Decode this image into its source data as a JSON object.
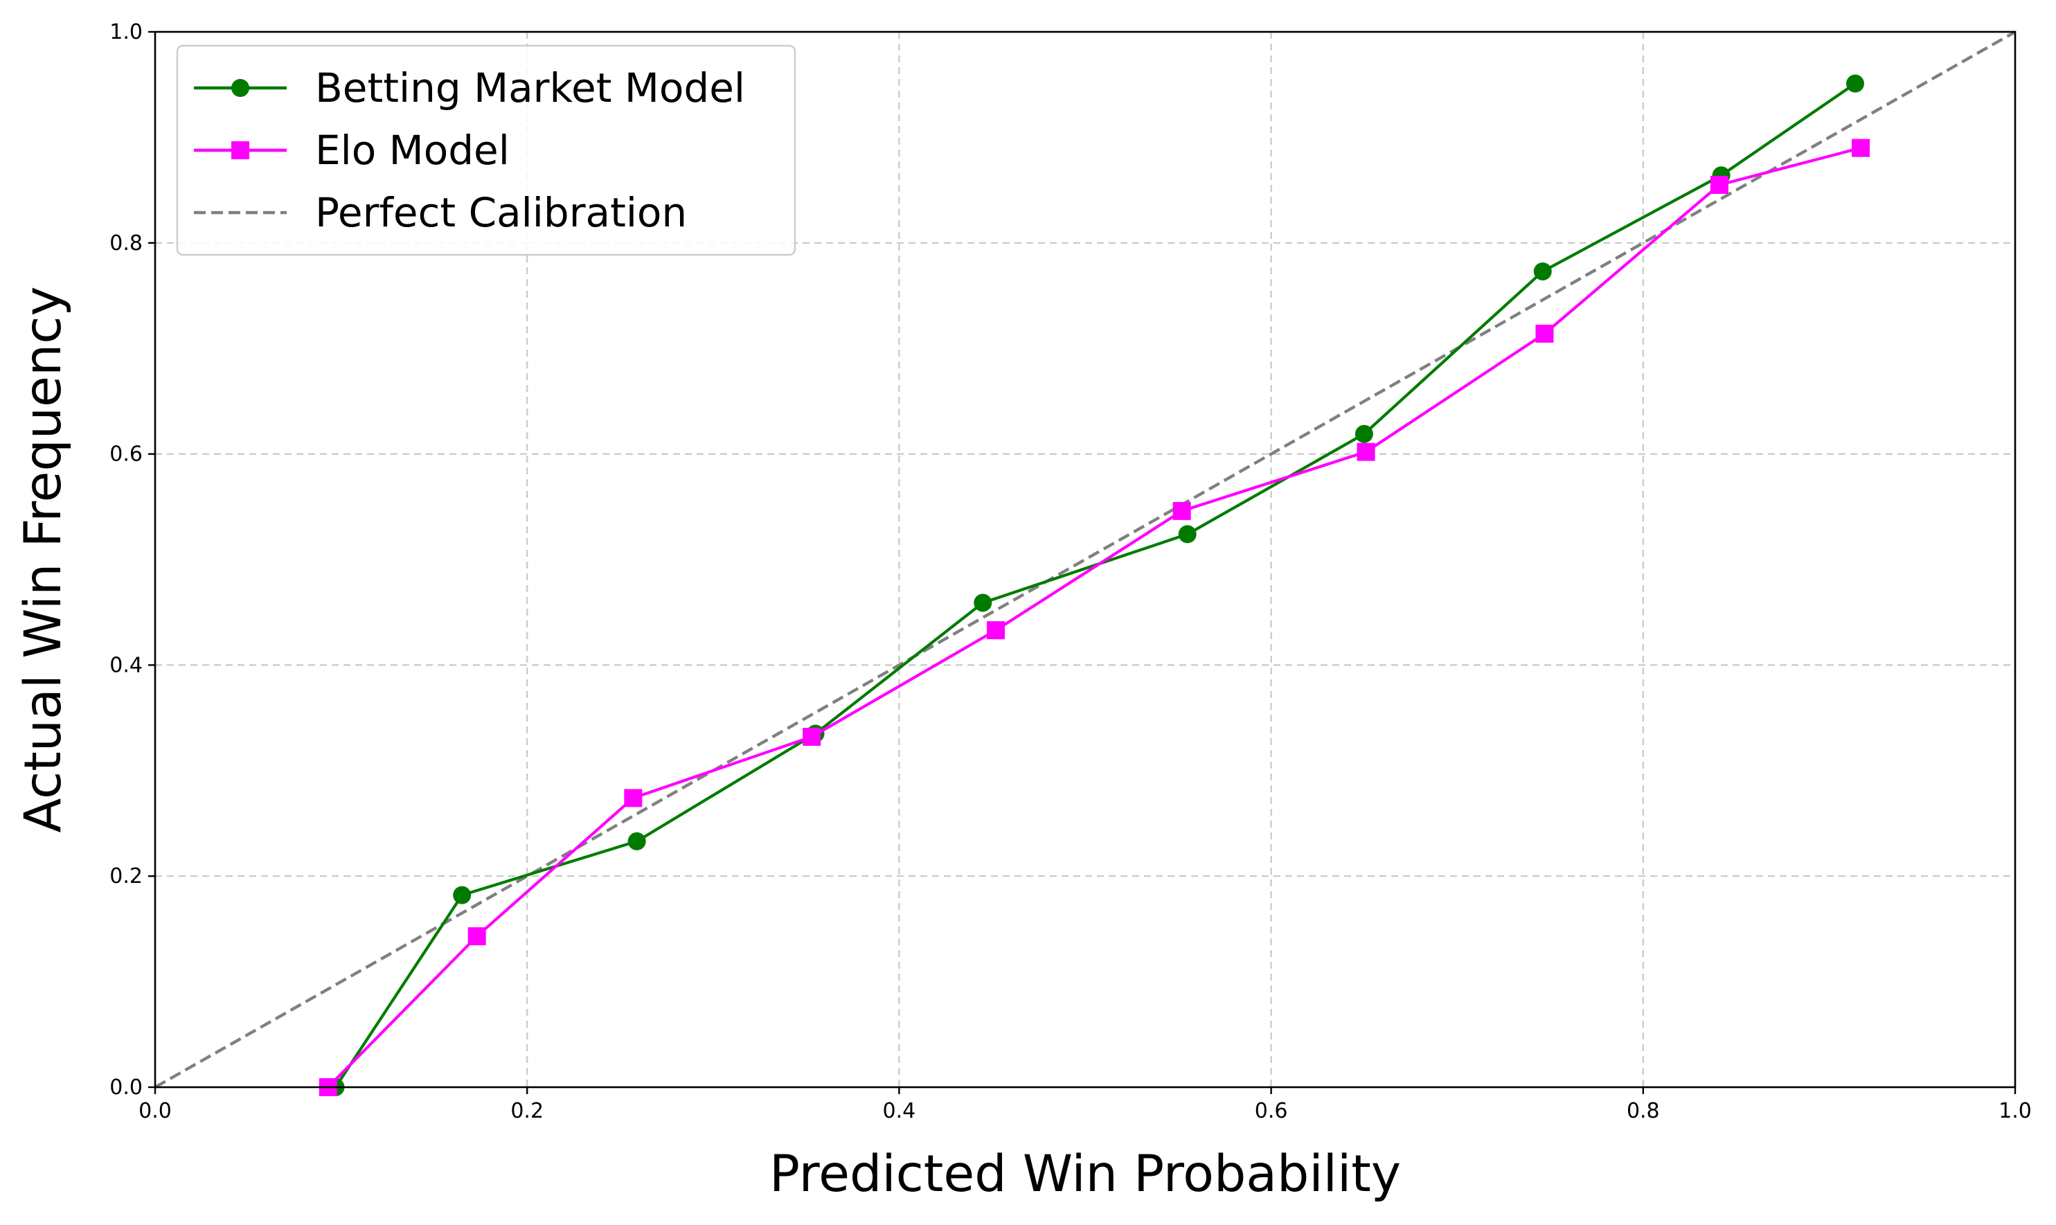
{
  "chart_data": {
    "type": "line",
    "title": "",
    "xlabel": "Predicted Win Probability",
    "ylabel": "Actual Win Frequency",
    "xlim": [
      0.0,
      1.0
    ],
    "ylim": [
      0.0,
      1.0
    ],
    "xticks": [
      "0.0",
      "0.2",
      "0.4",
      "0.6",
      "0.8",
      "1.0"
    ],
    "yticks": [
      "0.0",
      "0.2",
      "0.4",
      "0.6",
      "0.8",
      "1.0"
    ],
    "grid": true,
    "legend_position": "upper-left",
    "series": [
      {
        "name": "Betting Market Model",
        "color": "#007b00",
        "marker": "circle",
        "line_style": "solid",
        "points": [
          [
            0.097,
            0.0
          ],
          [
            0.165,
            0.182
          ],
          [
            0.259,
            0.233
          ],
          [
            0.355,
            0.335
          ],
          [
            0.445,
            0.459
          ],
          [
            0.555,
            0.524
          ],
          [
            0.65,
            0.619
          ],
          [
            0.746,
            0.773
          ],
          [
            0.842,
            0.864
          ],
          [
            0.914,
            0.951
          ]
        ]
      },
      {
        "name": "Elo Model",
        "color": "#ff00ff",
        "marker": "square",
        "line_style": "solid",
        "points": [
          [
            0.093,
            0.0
          ],
          [
            0.173,
            0.143
          ],
          [
            0.257,
            0.274
          ],
          [
            0.353,
            0.332
          ],
          [
            0.452,
            0.433
          ],
          [
            0.552,
            0.546
          ],
          [
            0.651,
            0.602
          ],
          [
            0.747,
            0.714
          ],
          [
            0.841,
            0.855
          ],
          [
            0.917,
            0.89
          ]
        ]
      },
      {
        "name": "Perfect Calibration",
        "color": "#808080",
        "marker": "none",
        "line_style": "dashed",
        "points": [
          [
            0.0,
            0.0
          ],
          [
            1.0,
            1.0
          ]
        ]
      }
    ]
  }
}
